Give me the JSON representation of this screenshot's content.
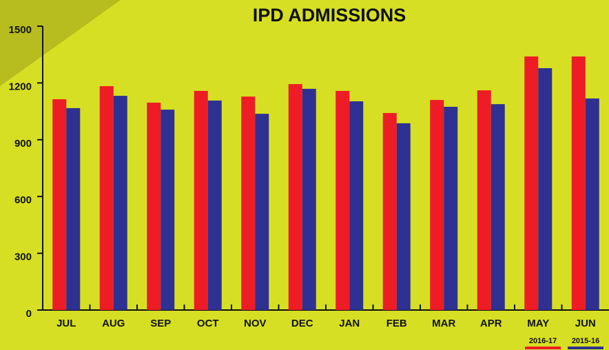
{
  "chart_data": {
    "type": "bar",
    "title": "IPD ADMISSIONS",
    "categories": [
      "JUL",
      "AUG",
      "SEP",
      "OCT",
      "NOV",
      "DEC",
      "JAN",
      "FEB",
      "MAR",
      "APR",
      "MAY",
      "JUN"
    ],
    "series": [
      {
        "name": "2016-17",
        "color": "#ee1c25",
        "values": [
          1114,
          1183,
          1096,
          1158,
          1128,
          1194,
          1158,
          1041,
          1110,
          1161,
          1340,
          1340
        ]
      },
      {
        "name": "2015-16",
        "color": "#2e3192",
        "values": [
          1067,
          1132,
          1059,
          1107,
          1037,
          1169,
          1103,
          987,
          1074,
          1088,
          1278,
          1118
        ]
      }
    ],
    "ylim": [
      0,
      1500
    ],
    "yticks": [
      0,
      300,
      600,
      900,
      1200,
      1500
    ],
    "grid": false
  }
}
